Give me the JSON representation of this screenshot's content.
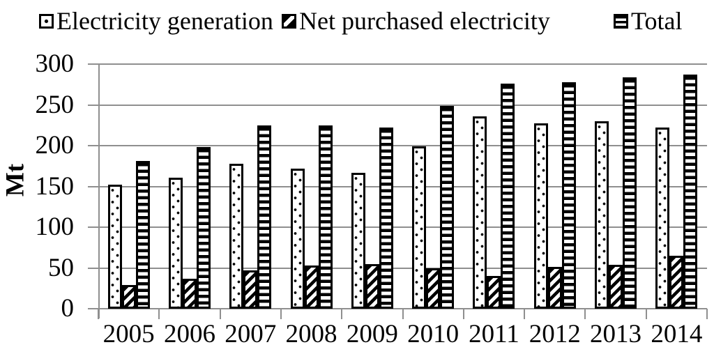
{
  "colors": {
    "foreground": "#000000",
    "gridline": "#8f8f8f",
    "bar_fill": "#ffffff"
  },
  "legend": {
    "items": [
      {
        "label": "Electricity generation",
        "swatch_icon": "dotted-square-icon"
      },
      {
        "label": "Net purchased electricity",
        "swatch_icon": "diagonal-hatch-square-icon"
      },
      {
        "label": "Total",
        "swatch_icon": "horizontal-lines-square-icon"
      }
    ]
  },
  "chart_data": {
    "type": "bar",
    "title": "",
    "xlabel": "",
    "ylabel": "Mt",
    "ylim": [
      0,
      300
    ],
    "ytick_step": 50,
    "yticks": [
      300,
      250,
      200,
      150,
      100,
      50,
      0
    ],
    "grid": true,
    "legend_position": "top",
    "categories": [
      "2005",
      "2006",
      "2007",
      "2008",
      "2009",
      "2010",
      "2011",
      "2012",
      "2013",
      "2014"
    ],
    "series": [
      {
        "name": "Electricity generation",
        "pattern": "dots",
        "values": [
          152,
          161,
          178,
          172,
          167,
          199,
          236,
          227,
          230,
          222
        ]
      },
      {
        "name": "Net purchased electricity",
        "pattern": "diagonal",
        "values": [
          29,
          37,
          47,
          53,
          55,
          50,
          40,
          51,
          54,
          65
        ]
      },
      {
        "name": "Total",
        "pattern": "hlines",
        "values": [
          181,
          198,
          225,
          225,
          222,
          249,
          276,
          278,
          284,
          287
        ]
      }
    ]
  }
}
